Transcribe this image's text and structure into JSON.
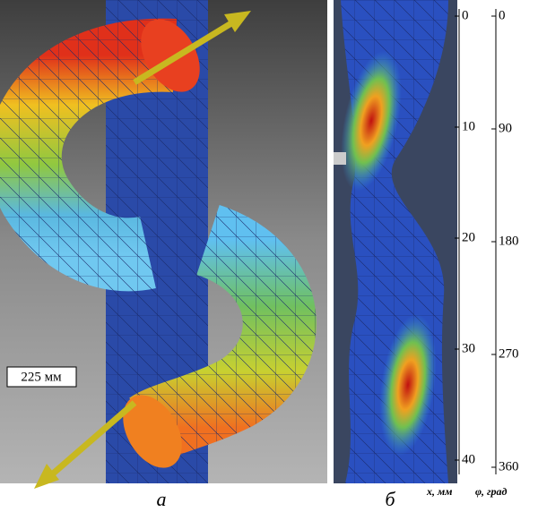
{
  "panel_a": {
    "dimension_label": "225 мм",
    "caption": "а"
  },
  "panel_b": {
    "caption": "б"
  },
  "scales": {
    "x": {
      "ticks": [
        0,
        10,
        20,
        30,
        40
      ],
      "label": "x, мм"
    },
    "phi": {
      "ticks": [
        0,
        90,
        180,
        270,
        360
      ],
      "label": "φ, град"
    }
  }
}
